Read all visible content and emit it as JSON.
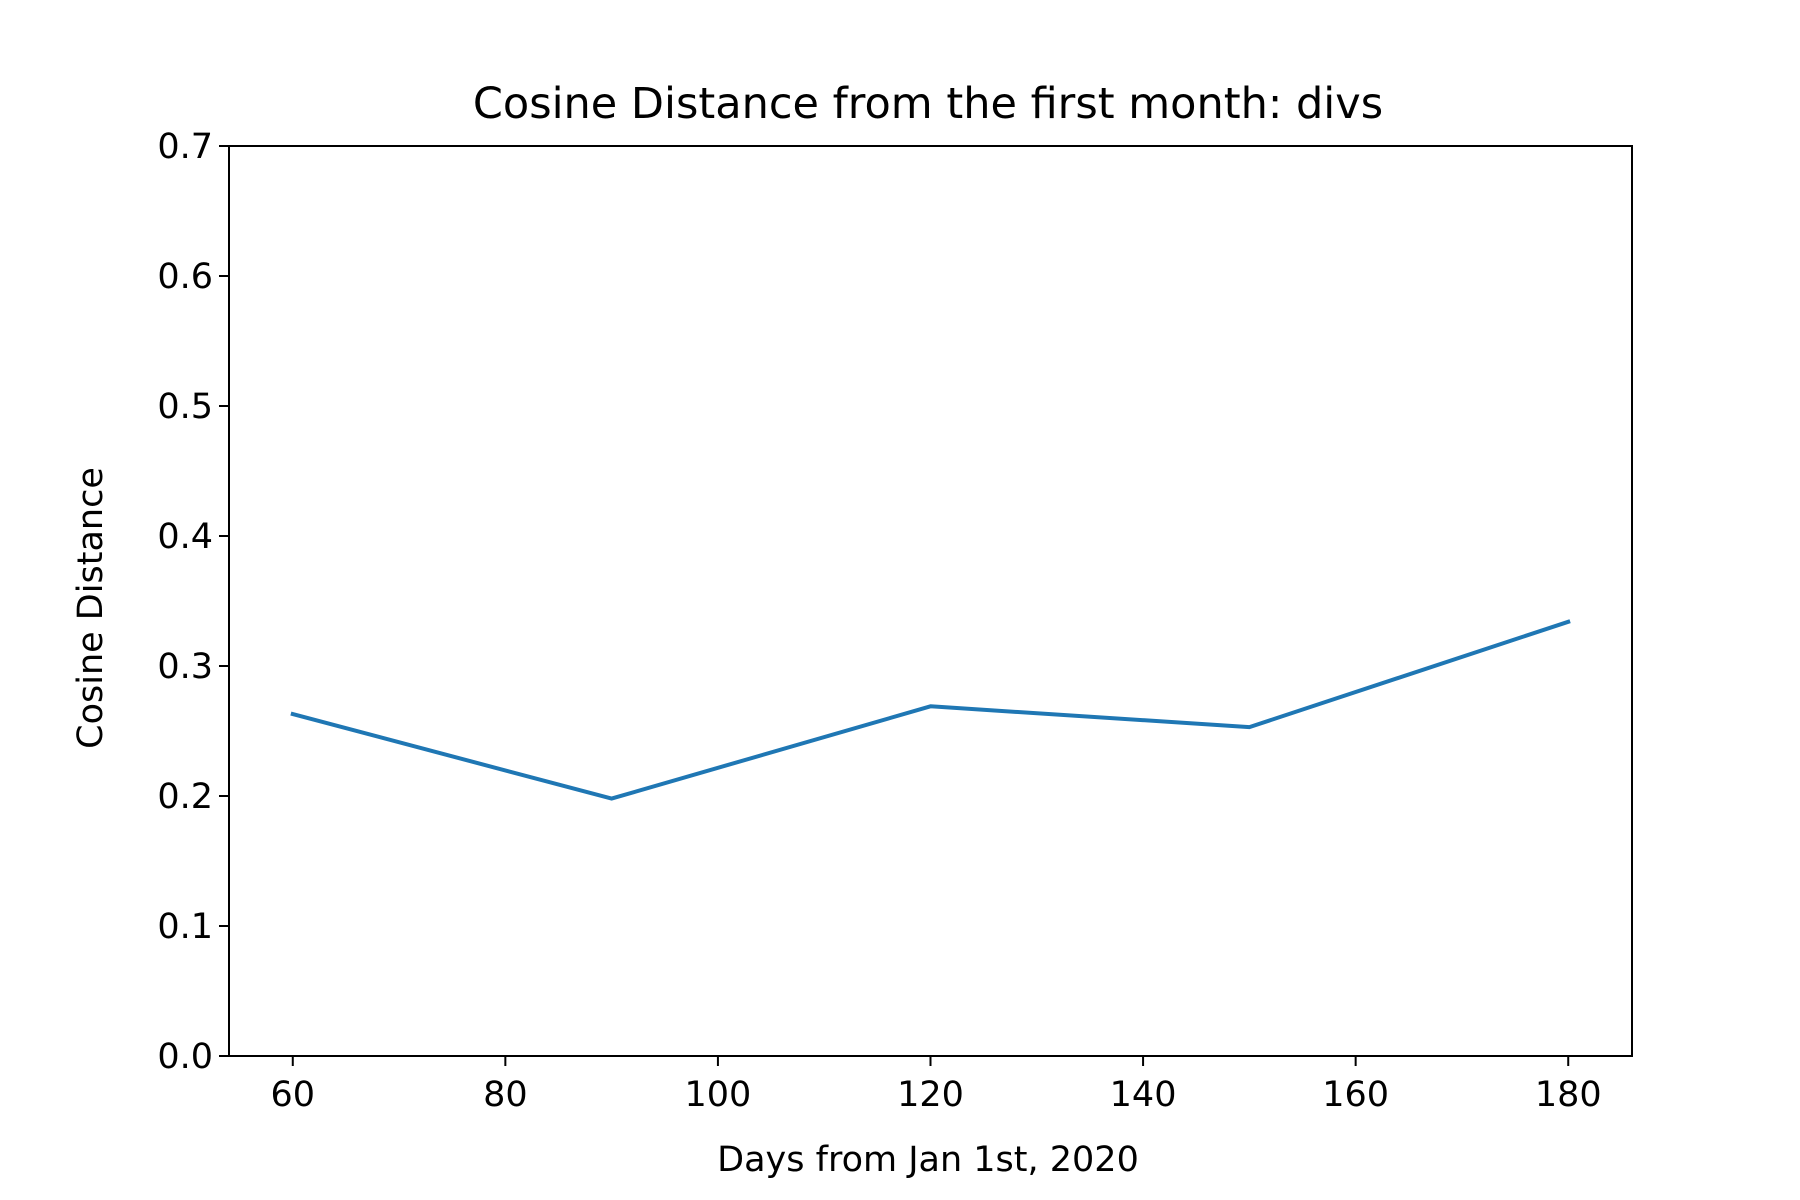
{
  "chart_data": {
    "type": "line",
    "title": "Cosine Distance from the first month: divs",
    "xlabel": "Days from Jan 1st, 2020",
    "ylabel": "Cosine Distance",
    "xlim": [
      54,
      186
    ],
    "ylim": [
      0.0,
      0.7
    ],
    "x_ticks": [
      60,
      80,
      100,
      120,
      140,
      160,
      180
    ],
    "y_ticks": [
      "0.0",
      "0.1",
      "0.2",
      "0.3",
      "0.4",
      "0.5",
      "0.6",
      "0.7"
    ],
    "grid": false,
    "series": [
      {
        "color": "#1f77b4",
        "x": [
          60,
          90,
          120,
          150,
          180
        ],
        "y": [
          0.263,
          0.198,
          0.269,
          0.253,
          0.334
        ]
      }
    ]
  }
}
